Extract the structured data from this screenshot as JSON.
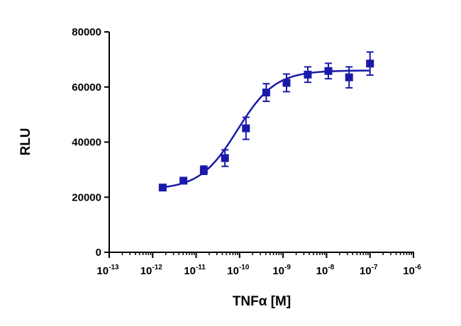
{
  "chart_data": {
    "type": "scatter",
    "title": "",
    "xlabel": "TNFα [M]",
    "ylabel": "RLU",
    "x_scale": "log",
    "xlim": [
      1e-13,
      1e-06
    ],
    "ylim": [
      0,
      80000
    ],
    "x_tick_exponents": [
      "-13",
      "-12",
      "-11",
      "-10",
      "-9",
      "-8",
      "-7",
      "-6"
    ],
    "x_tick_base": "10",
    "y_ticks": [
      "0",
      "20000",
      "40000",
      "60000",
      "80000"
    ],
    "color": "#1a1aaa",
    "marker": "square",
    "has_fit_curve": true,
    "points": [
      {
        "x": 1.7e-12,
        "y": 23500,
        "err": 1000
      },
      {
        "x": 5.1e-12,
        "y": 26000,
        "err": 1000
      },
      {
        "x": 1.5e-11,
        "y": 29800,
        "err": 1500
      },
      {
        "x": 4.6e-11,
        "y": 34200,
        "err": 3000
      },
      {
        "x": 1.4e-10,
        "y": 45000,
        "err": 4000
      },
      {
        "x": 4.1e-10,
        "y": 58000,
        "err": 3200
      },
      {
        "x": 1.2e-09,
        "y": 61500,
        "err": 3200
      },
      {
        "x": 3.7e-09,
        "y": 64500,
        "err": 2800
      },
      {
        "x": 1.1e-08,
        "y": 65800,
        "err": 2800
      },
      {
        "x": 3.3e-08,
        "y": 63500,
        "err": 3800
      },
      {
        "x": 1e-07,
        "y": 68500,
        "err": 4200
      }
    ]
  }
}
